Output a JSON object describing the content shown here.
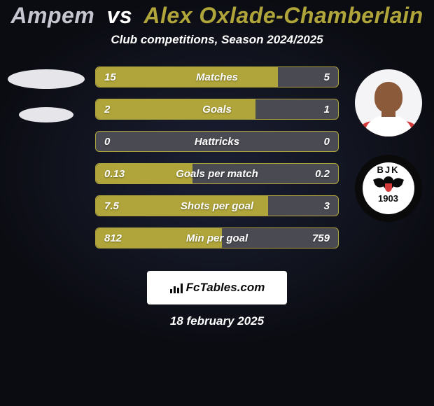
{
  "colors": {
    "bg_dark": "#0b0c12",
    "bg_light": "#1b1f34",
    "title_left": "#c6c6d0",
    "title_vs": "#ffffff",
    "title_right": "#b0a53a",
    "subtitle": "#ffffff",
    "bar_bg": "#4a4a52",
    "bar_fill": "#b0a53a",
    "bar_value": "#ffffff",
    "bar_label": "#ffffff",
    "ellipse": "#e6e6ea",
    "avatar_bg": "#f4f4f6",
    "skin": "#8a5a3a",
    "shirt_white": "#ffffff",
    "shirt_red": "#d23a3a",
    "badge_outer": "#0a0a0a",
    "badge_inner": "#ffffff",
    "badge_text": "#0a0a0a",
    "eagle": "#0a0a0a",
    "eagle_shield": "#d23a3a",
    "fc_box_bg": "#ffffff",
    "fc_text": "#0a0a0a",
    "fc_bar": "#0a0a0a",
    "date": "#ffffff"
  },
  "typography": {
    "title_size": 32,
    "subtitle_size": 17,
    "bar_value_size": 15,
    "bar_label_size": 15,
    "fc_size": 17,
    "date_size": 17,
    "badge_top_size": 13,
    "badge_year_size": 13
  },
  "title": {
    "left": "Ampem",
    "vs": "vs",
    "right": "Alex Oxlade-Chamberlain"
  },
  "subtitle": "Club competitions, Season 2024/2025",
  "stats": [
    {
      "label": "Matches",
      "left_val": "15",
      "right_val": "5",
      "left_pct": 75,
      "right_pct": 25
    },
    {
      "label": "Goals",
      "left_val": "2",
      "right_val": "1",
      "left_pct": 66,
      "right_pct": 34
    },
    {
      "label": "Hattricks",
      "left_val": "0",
      "right_val": "0",
      "left_pct": 0,
      "right_pct": 0
    },
    {
      "label": "Goals per match",
      "left_val": "0.13",
      "right_val": "0.2",
      "left_pct": 40,
      "right_pct": 60
    },
    {
      "label": "Shots per goal",
      "left_val": "7.5",
      "right_val": "3",
      "left_pct": 71,
      "right_pct": 29
    },
    {
      "label": "Min per goal",
      "left_val": "812",
      "right_val": "759",
      "left_pct": 52,
      "right_pct": 48
    }
  ],
  "badge": {
    "top_text": "BJK",
    "year": "1903"
  },
  "footer": {
    "brand_prefix": "Fc",
    "brand_suffix": "Tables.com"
  },
  "date": "18 february 2025"
}
